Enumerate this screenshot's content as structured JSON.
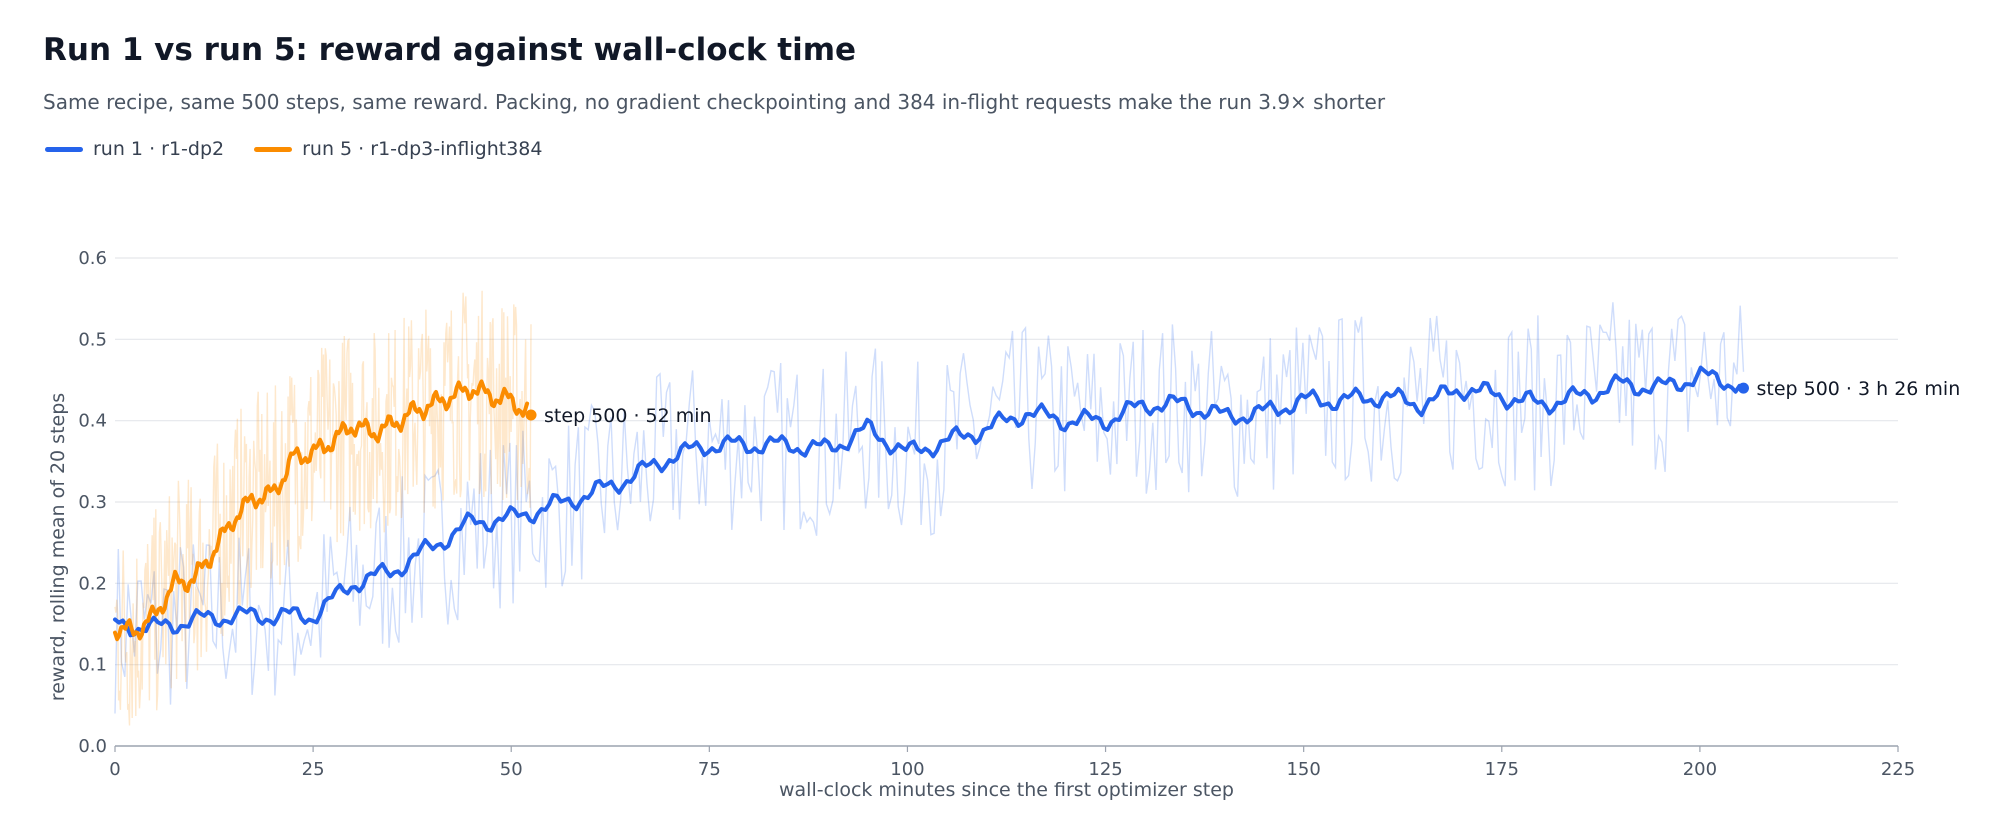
{
  "title": "Run 1 vs run 5: reward against wall-clock time",
  "subtitle": "Same recipe, same 500 steps, same reward. Packing, no gradient checkpointing and 384 in-flight requests make the run 3.9× shorter",
  "chart_data": {
    "type": "line",
    "xlabel": "wall-clock minutes since the first optimizer step",
    "ylabel": "reward, rolling mean of 20 steps",
    "xlim": [
      0,
      225
    ],
    "ylim": [
      0,
      0.6
    ],
    "xticks": [
      0,
      25,
      50,
      75,
      100,
      125,
      150,
      175,
      200,
      225
    ],
    "yticks": [
      0.0,
      0.1,
      0.2,
      0.3,
      0.4,
      0.5,
      0.6
    ],
    "grid": "horizontal",
    "legend": "top-left",
    "series": [
      {
        "name": "run 1 · r1-dp2",
        "color": "#2563eb",
        "end_label": "step 500 · 3 h 26 min",
        "end_point": [
          205.5,
          0.44
        ],
        "x": [
          0,
          5,
          10,
          15,
          20,
          25,
          30,
          35,
          40,
          45,
          50,
          55,
          60,
          65,
          70,
          75,
          80,
          85,
          90,
          95,
          100,
          105,
          110,
          115,
          120,
          125,
          130,
          135,
          140,
          145,
          150,
          155,
          160,
          165,
          170,
          175,
          180,
          185,
          190,
          195,
          200,
          205
        ],
        "y": [
          0.15,
          0.145,
          0.155,
          0.16,
          0.16,
          0.16,
          0.2,
          0.215,
          0.245,
          0.275,
          0.28,
          0.295,
          0.31,
          0.33,
          0.355,
          0.37,
          0.37,
          0.37,
          0.365,
          0.39,
          0.36,
          0.375,
          0.39,
          0.41,
          0.4,
          0.4,
          0.42,
          0.42,
          0.405,
          0.41,
          0.425,
          0.425,
          0.43,
          0.42,
          0.44,
          0.43,
          0.42,
          0.43,
          0.445,
          0.44,
          0.455,
          0.445
        ]
      },
      {
        "name": "run 5 · r1-dp3-inflight384",
        "color": "#fb8c00",
        "end_label": "step 500 · 52 min",
        "end_point": [
          52.5,
          0.407
        ],
        "x": [
          0,
          2.5,
          5,
          7.5,
          10,
          12.5,
          15,
          17.5,
          20,
          22.5,
          25,
          27.5,
          30,
          32.5,
          35,
          37.5,
          40,
          42.5,
          45,
          47.5,
          50,
          52
        ],
        "y": [
          0.145,
          0.14,
          0.16,
          0.2,
          0.205,
          0.24,
          0.28,
          0.305,
          0.31,
          0.355,
          0.36,
          0.375,
          0.395,
          0.385,
          0.395,
          0.41,
          0.42,
          0.43,
          0.44,
          0.43,
          0.425,
          0.41
        ]
      }
    ]
  }
}
